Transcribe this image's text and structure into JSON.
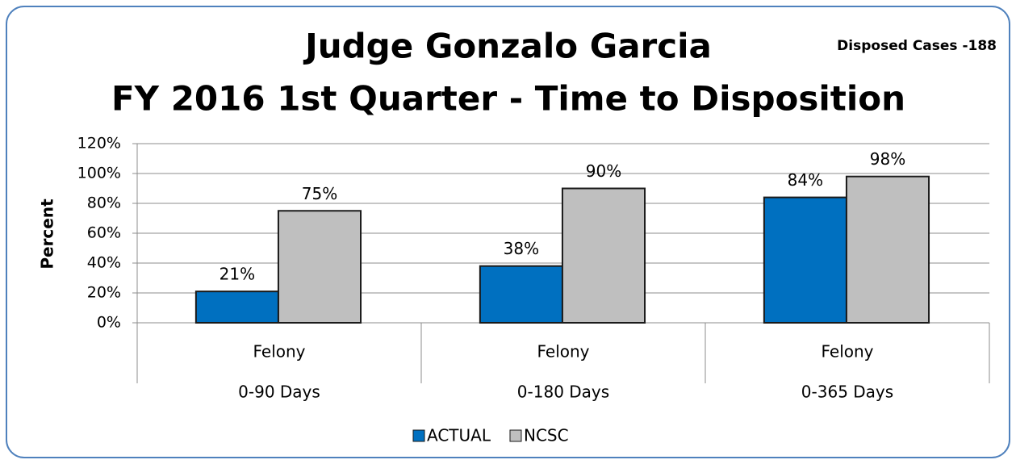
{
  "chart_data": {
    "type": "bar",
    "title": "Judge Gonzalo Garcia",
    "subtitle": "FY 2016 1st Quarter - Time to Disposition",
    "annotation": "Disposed Cases -188",
    "ylabel": "Percent",
    "categories": [
      [
        "Felony",
        "0-90 Days"
      ],
      [
        "Felony",
        "0-180 Days"
      ],
      [
        "Felony",
        "0-365 Days"
      ]
    ],
    "series": [
      {
        "name": "ACTUAL",
        "color": "#0070c0",
        "values": [
          21,
          38,
          84
        ],
        "value_labels": [
          "21%",
          "38%",
          "84%"
        ]
      },
      {
        "name": "NCSC",
        "color": "#bfbfbf",
        "values": [
          75,
          90,
          98
        ],
        "value_labels": [
          "75%",
          "90%",
          "98%"
        ]
      }
    ],
    "ylim": [
      0,
      120
    ],
    "yticks": [
      {
        "value": 0,
        "label": "0%"
      },
      {
        "value": 20,
        "label": "20%"
      },
      {
        "value": 40,
        "label": "40%"
      },
      {
        "value": 60,
        "label": "60%"
      },
      {
        "value": 80,
        "label": "80%"
      },
      {
        "value": 100,
        "label": "100%"
      },
      {
        "value": 120,
        "label": "120%"
      }
    ],
    "grid": true,
    "legend": "bottom"
  }
}
